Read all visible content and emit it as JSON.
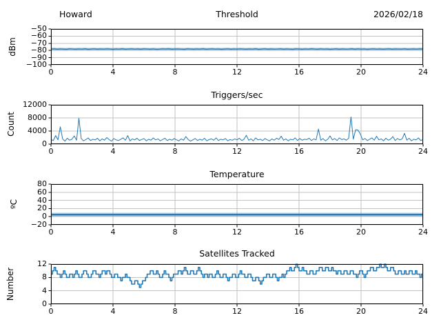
{
  "figure": {
    "background": "#ffffff",
    "accent_color": "#1f77b4",
    "grid_color": "#c2c2c2",
    "text_color": "#000000"
  },
  "chart_data": [
    {
      "type": "line",
      "name": "threshold",
      "titles": {
        "left": "Howard",
        "center": "Threshold",
        "right": "2026/02/18"
      },
      "ylabel": "dBm",
      "xlabel": "",
      "xlim": [
        0,
        24
      ],
      "ylim": [
        -100,
        -50
      ],
      "xticks": [
        0,
        4,
        8,
        12,
        16,
        20,
        24
      ],
      "yticks": [
        -100,
        -90,
        -80,
        -70,
        -60,
        -50
      ],
      "grid": true,
      "legend": "none",
      "values": [
        -78.0,
        -77.8,
        -78.2,
        -77.9,
        -78.1,
        -78.3,
        -77.8,
        -78.0,
        -78.2,
        -77.9,
        -78.1,
        -77.7,
        -78.3,
        -78.0,
        -77.8,
        -78.2,
        -77.9,
        -78.1,
        -77.8,
        -78.0,
        -78.3,
        -77.9,
        -78.1,
        -77.7,
        -78.2,
        -78.0,
        -77.8,
        -78.1,
        -77.9,
        -78.2,
        -77.8,
        -78.0,
        -78.2,
        -77.9,
        -78.3,
        -78.1,
        -77.8,
        -78.0,
        -77.7,
        -78.2,
        -78.0,
        -77.9,
        -78.1,
        -78.3,
        -77.8,
        -78.0,
        -78.2,
        -77.9,
        -78.1,
        -77.7,
        -78.2,
        -78.0,
        -77.8,
        -78.1,
        -77.9,
        -78.3,
        -78.0,
        -77.8,
        -78.2,
        -77.9,
        -78.1,
        -77.8,
        -78.0,
        -78.2,
        -77.9,
        -78.1,
        -77.7,
        -78.3,
        -78.0,
        -77.8,
        -78.2,
        -77.9,
        -78.1,
        -78.0,
        -77.8,
        -78.2,
        -77.9,
        -78.1,
        -78.3,
        -77.8,
        -78.0,
        -78.2,
        -77.9,
        -78.1,
        -77.7,
        -78.0,
        -78.2,
        -77.8,
        -78.1,
        -77.9,
        -78.3,
        -78.0,
        -77.8,
        -78.2,
        -77.9,
        -78.1,
        -78.0,
        -77.7,
        -78.2,
        -77.8,
        -78.1,
        -77.9,
        -78.3,
        -78.0,
        -77.8,
        -78.1,
        -77.9,
        -78.2,
        -78.0,
        -77.8,
        -78.2,
        -77.9,
        -78.0,
        -78.1,
        -77.8,
        -78.2,
        -78.0,
        -77.9,
        -78.1,
        -77.8,
        -78.0
      ]
    },
    {
      "type": "line",
      "name": "triggers-per-sec",
      "title": "Triggers/sec",
      "ylabel": "Count",
      "xlabel": "",
      "xlim": [
        0,
        24
      ],
      "ylim": [
        0,
        12000
      ],
      "xticks": [
        0,
        4,
        8,
        12,
        16,
        20,
        24
      ],
      "yticks": [
        0,
        4000,
        8000,
        12000
      ],
      "grid": true,
      "legend": "none",
      "values": [
        1400,
        1100,
        2600,
        1300,
        5300,
        1600,
        900,
        1800,
        1200,
        1500,
        2500,
        1200,
        7900,
        1700,
        1000,
        1400,
        1900,
        1100,
        1500,
        1300,
        1800,
        1000,
        1600,
        1200,
        2000,
        1400,
        900,
        1700,
        1300,
        1100,
        1500,
        1900,
        1200,
        2600,
        1000,
        1600,
        1300,
        1800,
        1100,
        1400,
        1700,
        1000,
        1500,
        1200,
        1900,
        1300,
        1600,
        1000,
        1400,
        1800,
        1100,
        1500,
        1200,
        1700,
        1300,
        1000,
        1600,
        1200,
        2300,
        1400,
        900,
        1300,
        1700,
        1100,
        1500,
        1200,
        1800,
        1000,
        1400,
        1600,
        1200,
        1900,
        1100,
        1500,
        1300,
        1700,
        1000,
        1400,
        1200,
        1600,
        1300,
        1800,
        1100,
        1500,
        2700,
        1200,
        1600,
        1000,
        1900,
        1300,
        1500,
        1100,
        1700,
        1300,
        1000,
        1600,
        1200,
        1800,
        1400,
        2400,
        1200,
        1600,
        1000,
        1500,
        1300,
        1900,
        1100,
        1700,
        1200,
        1500,
        1400,
        1800,
        1100,
        1600,
        1300,
        4600,
        1200,
        1700,
        1000,
        1500,
        2500,
        1300,
        1700,
        1100,
        1900,
        1400,
        1600,
        1200,
        1800,
        8300,
        1500,
        4400,
        4300,
        3100,
        1300,
        1700,
        1100,
        1500,
        1900,
        1200,
        2400,
        1300,
        1600,
        1000,
        1800,
        1200,
        1500,
        2300,
        1100,
        1700,
        1300,
        1600,
        3300,
        1200,
        1800,
        1000,
        1500,
        1300,
        1900,
        1100,
        1400
      ]
    },
    {
      "type": "line",
      "name": "temperature",
      "title": "Temperature",
      "ylabel": "ºC",
      "xlabel": "",
      "xlim": [
        0,
        24
      ],
      "ylim": [
        -20,
        80
      ],
      "xticks": [
        0,
        4,
        8,
        12,
        16,
        20,
        24
      ],
      "yticks": [
        -20,
        0,
        20,
        40,
        60,
        80
      ],
      "grid": true,
      "legend": "none",
      "values": [
        5,
        5,
        5,
        5,
        5,
        5,
        5,
        5,
        5,
        5,
        5,
        5,
        5,
        5,
        5,
        5,
        5,
        5,
        5,
        5,
        5,
        5,
        5,
        5,
        5
      ]
    },
    {
      "type": "step",
      "name": "satellites-tracked",
      "title": "Satellites Tracked",
      "ylabel": "Number",
      "xlabel": "",
      "xlim": [
        0,
        24
      ],
      "ylim": [
        0,
        12
      ],
      "xticks": [
        0,
        4,
        8,
        12,
        16,
        20,
        24
      ],
      "yticks": [
        0,
        4,
        8,
        12
      ],
      "grid": true,
      "legend": "none",
      "values": [
        9,
        10,
        11,
        10,
        9,
        9,
        8,
        9,
        10,
        9,
        8,
        8,
        9,
        9,
        8,
        9,
        10,
        9,
        8,
        8,
        9,
        10,
        10,
        9,
        8,
        8,
        9,
        10,
        10,
        9,
        9,
        8,
        9,
        10,
        10,
        9,
        10,
        10,
        9,
        8,
        8,
        9,
        9,
        8,
        8,
        7,
        8,
        8,
        9,
        8,
        8,
        7,
        6,
        6,
        7,
        7,
        6,
        5,
        6,
        7,
        7,
        8,
        9,
        9,
        10,
        10,
        9,
        9,
        10,
        9,
        8,
        8,
        9,
        10,
        9,
        9,
        8,
        7,
        8,
        9,
        9,
        9,
        10,
        10,
        9,
        10,
        11,
        10,
        9,
        9,
        10,
        10,
        9,
        9,
        10,
        11,
        10,
        9,
        8,
        9,
        9,
        8,
        9,
        9,
        8,
        8,
        9,
        10,
        9,
        8,
        8,
        9,
        9,
        8,
        7,
        8,
        8,
        9,
        9,
        8,
        8,
        9,
        10,
        9,
        9,
        8,
        8,
        9,
        9,
        8,
        7,
        7,
        8,
        8,
        7,
        6,
        7,
        8,
        8,
        9,
        9,
        8,
        8,
        9,
        9,
        8,
        7,
        8,
        8,
        9,
        8,
        9,
        10,
        10,
        11,
        10,
        10,
        11,
        12,
        11,
        10,
        10,
        11,
        10,
        10,
        9,
        9,
        10,
        10,
        9,
        9,
        10,
        10,
        11,
        11,
        10,
        10,
        11,
        11,
        10,
        10,
        11,
        10,
        10,
        9,
        10,
        10,
        9,
        9,
        10,
        10,
        9,
        9,
        10,
        10,
        9,
        9,
        8,
        9,
        10,
        10,
        9,
        8,
        9,
        10,
        10,
        11,
        11,
        10,
        10,
        11,
        11,
        12,
        11,
        11,
        12,
        11,
        10,
        10,
        11,
        11,
        10,
        9,
        9,
        10,
        10,
        9,
        9,
        10,
        9,
        9,
        10,
        10,
        9,
        9,
        10,
        9,
        9,
        8,
        9,
        9
      ]
    }
  ]
}
